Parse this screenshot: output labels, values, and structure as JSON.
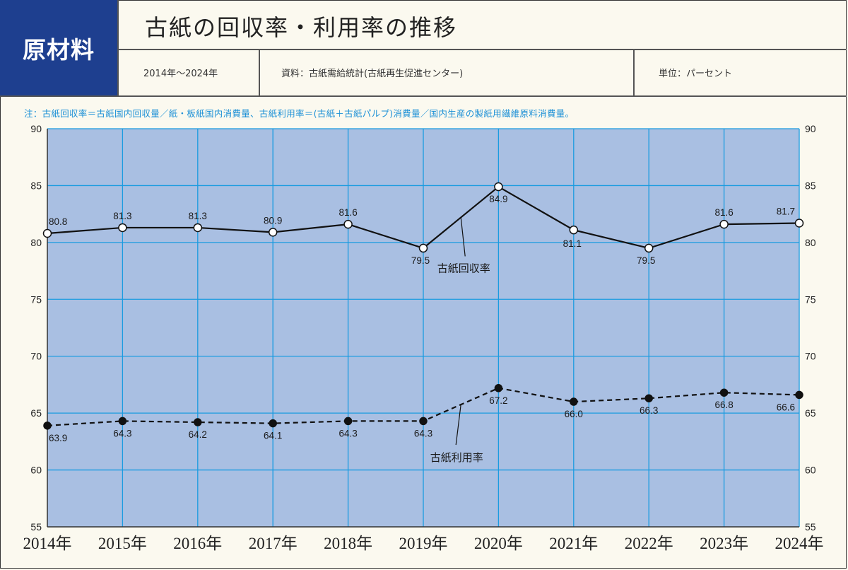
{
  "header": {
    "category": "原材料",
    "title": "古紙の回収率・利用率の推移",
    "period": "2014年～2024年",
    "source": "資料：古紙需給統計(古紙再生促進センター)",
    "unit": "単位：パーセント",
    "note": "注：古紙回収率＝古紙国内回収量／紙・板紙国内消費量、古紙利用率＝(古紙＋古紙パルプ)消費量／国内生産の製紙用繊維原料消費量。"
  },
  "colors": {
    "category_bg": "#1e3f8f",
    "plot_bg": "#a9bfe2",
    "grid": "#1a9be0",
    "note_text": "#1a8fd6",
    "line": "#111111"
  },
  "chart_data": {
    "type": "line",
    "title": "古紙の回収率・利用率の推移",
    "xlabel": "",
    "ylabel": "パーセント",
    "ylim": [
      55,
      90
    ],
    "yticks": [
      90,
      85,
      80,
      75,
      70,
      65,
      60,
      55
    ],
    "grid": true,
    "categories": [
      "2014年",
      "2015年",
      "2016年",
      "2017年",
      "2018年",
      "2019年",
      "2020年",
      "2021年",
      "2022年",
      "2023年",
      "2024年"
    ],
    "series": [
      {
        "name": "古紙回収率",
        "style": "solid",
        "marker": "open-circle",
        "values": [
          80.8,
          81.3,
          81.3,
          80.9,
          81.6,
          79.5,
          84.9,
          81.1,
          79.5,
          81.6,
          81.7
        ],
        "label_positions": [
          "above",
          "above",
          "above",
          "above",
          "above",
          "below",
          "below",
          "below",
          "below",
          "above",
          "above"
        ]
      },
      {
        "name": "古紙利用率",
        "style": "dashed",
        "marker": "filled-circle",
        "values": [
          63.9,
          64.3,
          64.2,
          64.1,
          64.3,
          64.3,
          67.2,
          66.0,
          66.3,
          66.8,
          66.6
        ],
        "label_positions": [
          "below",
          "below",
          "below",
          "below",
          "below",
          "below",
          "below",
          "below",
          "below",
          "below",
          "below"
        ]
      }
    ],
    "annotations": [
      {
        "text": "古紙回収率",
        "series": 0
      },
      {
        "text": "古紙利用率",
        "series": 1
      }
    ],
    "legend_position": "inline-callouts"
  }
}
